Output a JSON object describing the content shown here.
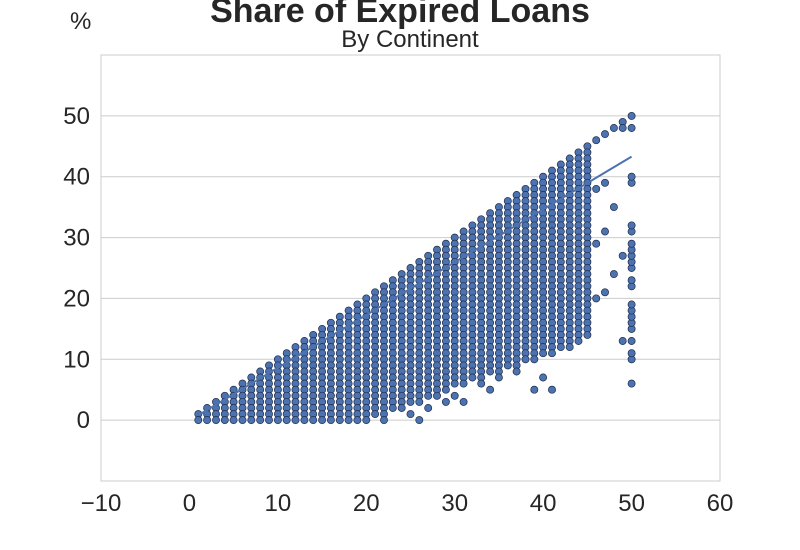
{
  "chart_data": {
    "type": "scatter",
    "title": "Share of Expired Loans",
    "subtitle": "By Continent",
    "ylabel": "%",
    "xlabel": "",
    "xlim": [
      -10,
      60
    ],
    "ylim": [
      -10,
      60
    ],
    "xticks": [
      "−10",
      "0",
      "10",
      "20",
      "30",
      "40",
      "50",
      "60"
    ],
    "yticks": [
      "0",
      "10",
      "20",
      "30",
      "40",
      "50"
    ],
    "grid": "horizontal",
    "legend": "none",
    "colors": {
      "point": "#4c72b0",
      "point_edge": "#1f2d4d",
      "trend": "#4c72b0",
      "grid": "#cccccc",
      "frame": "#cccccc"
    },
    "trend_line": {
      "x": [
        1,
        50
      ],
      "y": [
        0.8,
        43.3
      ]
    },
    "extra_points": [
      [
        26,
        0
      ],
      [
        22,
        0
      ],
      [
        25,
        1
      ],
      [
        27,
        2
      ],
      [
        24,
        2
      ],
      [
        23,
        3
      ],
      [
        29,
        3
      ],
      [
        31,
        3
      ],
      [
        30,
        4
      ],
      [
        34,
        5
      ],
      [
        39,
        5
      ],
      [
        33,
        6
      ],
      [
        40,
        7
      ],
      [
        35,
        7
      ],
      [
        37,
        8
      ],
      [
        32,
        8
      ],
      [
        36,
        10
      ],
      [
        38,
        11
      ],
      [
        41,
        11
      ],
      [
        42,
        12
      ],
      [
        43,
        12
      ],
      [
        44,
        15
      ],
      [
        45,
        16
      ],
      [
        46,
        20
      ],
      [
        47,
        21
      ],
      [
        44,
        22
      ],
      [
        48,
        24
      ],
      [
        49,
        27
      ],
      [
        42,
        28
      ],
      [
        46,
        29
      ],
      [
        43,
        31
      ],
      [
        47,
        31
      ],
      [
        45,
        33
      ],
      [
        48,
        35
      ],
      [
        46,
        38
      ],
      [
        47,
        39
      ],
      [
        49,
        13
      ],
      [
        50,
        6
      ],
      [
        50,
        10
      ],
      [
        50,
        11
      ],
      [
        50,
        13
      ],
      [
        50,
        15
      ],
      [
        50,
        16
      ],
      [
        50,
        17
      ],
      [
        50,
        18
      ],
      [
        50,
        19
      ],
      [
        50,
        22
      ],
      [
        50,
        23
      ],
      [
        50,
        25
      ],
      [
        50,
        26
      ],
      [
        50,
        27
      ],
      [
        50,
        28
      ],
      [
        50,
        29
      ],
      [
        50,
        31
      ],
      [
        50,
        32
      ],
      [
        50,
        39
      ],
      [
        50,
        40
      ],
      [
        50,
        48
      ],
      [
        50,
        50
      ],
      [
        49,
        49
      ],
      [
        48,
        48
      ],
      [
        49,
        48
      ],
      [
        47,
        47
      ],
      [
        46,
        46
      ],
      [
        45,
        45
      ],
      [
        41,
        5
      ],
      [
        39,
        14
      ],
      [
        38,
        16
      ],
      [
        37,
        18
      ],
      [
        36,
        20
      ],
      [
        35,
        22
      ],
      [
        40,
        18
      ],
      [
        41,
        13
      ],
      [
        40,
        16
      ],
      [
        39,
        19
      ],
      [
        38,
        21
      ],
      [
        37,
        23
      ],
      [
        36,
        26
      ],
      [
        39,
        24
      ],
      [
        40,
        26
      ],
      [
        41,
        28
      ],
      [
        42,
        30
      ]
    ]
  }
}
